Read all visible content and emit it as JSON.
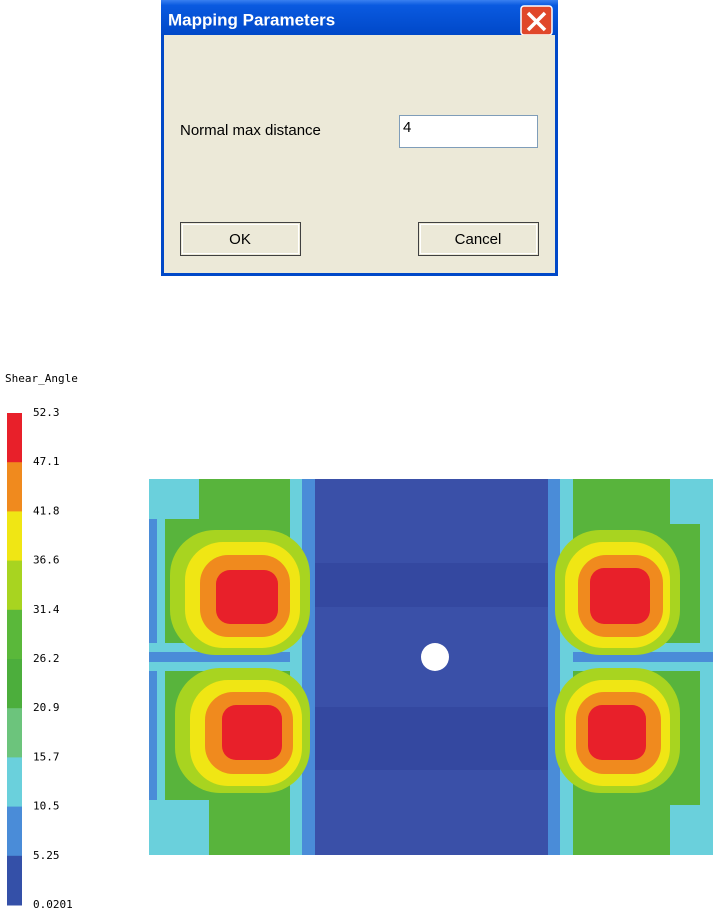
{
  "dialog": {
    "title": "Mapping Parameters",
    "field_label": "Normal max distance",
    "field_value": "4",
    "buttons": [
      "OK",
      "Cancel"
    ]
  },
  "legend": {
    "title": "Shear_Angle",
    "labels": [
      "52.3",
      "47.1",
      "41.8",
      "36.6",
      "31.4",
      "26.2",
      "20.9",
      "15.7",
      "10.5",
      "5.25",
      "0.0201"
    ],
    "colors": [
      "#e8202a",
      "#f08a1e",
      "#f0e614",
      "#a8d420",
      "#5ab83a",
      "#4cae3c",
      "#6cc47c",
      "#6ad0dc",
      "#4a8cd8",
      "#3450a8"
    ]
  }
}
